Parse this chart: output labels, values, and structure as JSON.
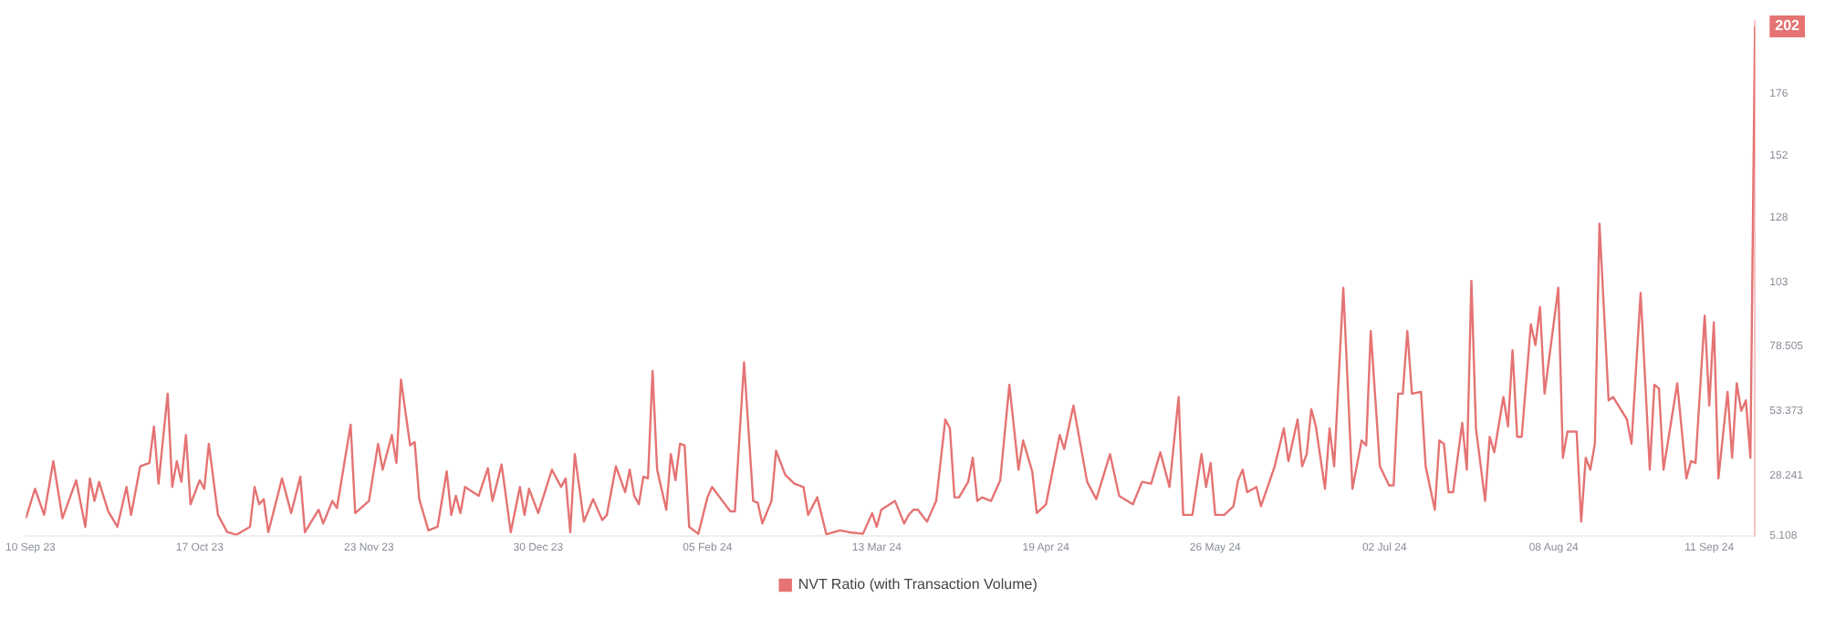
{
  "chart_data": {
    "type": "line",
    "legend": "bottom",
    "marker": "none",
    "line_style": "solid",
    "grid": false,
    "xlim": [
      "2023-09-09",
      "2024-09-21"
    ],
    "xticks": [
      {
        "value": "2023-09-10",
        "label": "10 Sep 23"
      },
      {
        "value": "2023-10-17",
        "label": "17 Oct 23"
      },
      {
        "value": "2023-11-23",
        "label": "23 Nov 23"
      },
      {
        "value": "2023-12-30",
        "label": "30 Dec 23"
      },
      {
        "value": "2024-02-05",
        "label": "05 Feb 24"
      },
      {
        "value": "2024-03-13",
        "label": "13 Mar 24"
      },
      {
        "value": "2024-04-19",
        "label": "19 Apr 24"
      },
      {
        "value": "2024-05-26",
        "label": "26 May 24"
      },
      {
        "value": "2024-07-02",
        "label": "02 Jul 24"
      },
      {
        "value": "2024-08-08",
        "label": "08 Aug 24"
      },
      {
        "value": "2024-09-11",
        "label": "11 Sep 24"
      }
    ],
    "ylim": [
      5.108,
      204
    ],
    "yticks": [
      5.108,
      28.241,
      53.373,
      78.505,
      103,
      128,
      152,
      176
    ],
    "annotations": [
      {
        "text": "202",
        "x": "2024-09-21",
        "y": 202
      }
    ],
    "series": [
      {
        "name": "NVT Ratio (with Transaction Volume)",
        "color": "#e57373",
        "x": [
          "2023-09-09",
          "2023-09-11",
          "2023-09-13",
          "2023-09-15",
          "2023-09-17",
          "2023-09-20",
          "2023-09-22",
          "2023-09-23",
          "2023-09-24",
          "2023-09-25",
          "2023-09-27",
          "2023-09-29",
          "2023-10-01",
          "2023-10-02",
          "2023-10-04",
          "2023-10-06",
          "2023-10-07",
          "2023-10-08",
          "2023-10-10",
          "2023-10-11",
          "2023-10-12",
          "2023-10-13",
          "2023-10-14",
          "2023-10-15",
          "2023-10-17",
          "2023-10-18",
          "2023-10-19",
          "2023-10-21",
          "2023-10-23",
          "2023-10-25",
          "2023-10-28",
          "2023-10-29",
          "2023-10-30",
          "2023-10-31",
          "2023-11-01",
          "2023-11-04",
          "2023-11-06",
          "2023-11-08",
          "2023-11-09",
          "2023-11-12",
          "2023-11-13",
          "2023-11-15",
          "2023-11-16",
          "2023-11-19",
          "2023-11-20",
          "2023-11-23",
          "2023-11-25",
          "2023-11-26",
          "2023-11-28",
          "2023-11-29",
          "2023-11-30",
          "2023-12-02",
          "2023-12-03",
          "2023-12-04",
          "2023-12-06",
          "2023-12-08",
          "2023-12-10",
          "2023-12-11",
          "2023-12-12",
          "2023-12-13",
          "2023-12-14",
          "2023-12-17",
          "2023-12-19",
          "2023-12-20",
          "2023-12-22",
          "2023-12-24",
          "2023-12-26",
          "2023-12-27",
          "2023-12-28",
          "2023-12-30",
          "2024-01-02",
          "2024-01-04",
          "2024-01-05",
          "2024-01-06",
          "2024-01-07",
          "2024-01-09",
          "2024-01-11",
          "2024-01-13",
          "2024-01-14",
          "2024-01-16",
          "2024-01-18",
          "2024-01-19",
          "2024-01-20",
          "2024-01-21",
          "2024-01-22",
          "2024-01-23",
          "2024-01-24",
          "2024-01-25",
          "2024-01-27",
          "2024-01-28",
          "2024-01-29",
          "2024-01-30",
          "2024-01-31",
          "2024-02-01",
          "2024-02-03",
          "2024-02-05",
          "2024-02-06",
          "2024-02-08",
          "2024-02-10",
          "2024-02-11",
          "2024-02-13",
          "2024-02-15",
          "2024-02-16",
          "2024-02-17",
          "2024-02-19",
          "2024-02-20",
          "2024-02-22",
          "2024-02-24",
          "2024-02-26",
          "2024-02-27",
          "2024-02-29",
          "2024-03-02",
          "2024-03-05",
          "2024-03-07",
          "2024-03-10",
          "2024-03-12",
          "2024-03-13",
          "2024-03-14",
          "2024-03-17",
          "2024-03-19",
          "2024-03-20",
          "2024-03-21",
          "2024-03-22",
          "2024-03-24",
          "2024-03-26",
          "2024-03-28",
          "2024-03-29",
          "2024-03-30",
          "2024-03-31",
          "2024-04-02",
          "2024-04-03",
          "2024-04-04",
          "2024-04-05",
          "2024-04-07",
          "2024-04-09",
          "2024-04-11",
          "2024-04-13",
          "2024-04-14",
          "2024-04-16",
          "2024-04-17",
          "2024-04-19",
          "2024-04-22",
          "2024-04-23",
          "2024-04-25",
          "2024-04-28",
          "2024-04-30",
          "2024-05-03",
          "2024-05-05",
          "2024-05-08",
          "2024-05-10",
          "2024-05-12",
          "2024-05-14",
          "2024-05-16",
          "2024-05-18",
          "2024-05-19",
          "2024-05-21",
          "2024-05-23",
          "2024-05-24",
          "2024-05-25",
          "2024-05-26",
          "2024-05-28",
          "2024-05-30",
          "2024-05-31",
          "2024-06-01",
          "2024-06-02",
          "2024-06-04",
          "2024-06-05",
          "2024-06-08",
          "2024-06-10",
          "2024-06-11",
          "2024-06-13",
          "2024-06-14",
          "2024-06-15",
          "2024-06-16",
          "2024-06-17",
          "2024-06-19",
          "2024-06-20",
          "2024-06-21",
          "2024-06-23",
          "2024-06-25",
          "2024-06-27",
          "2024-06-28",
          "2024-06-29",
          "2024-07-01",
          "2024-07-03",
          "2024-07-04",
          "2024-07-05",
          "2024-07-06",
          "2024-07-07",
          "2024-07-08",
          "2024-07-10",
          "2024-07-11",
          "2024-07-13",
          "2024-07-14",
          "2024-07-15",
          "2024-07-16",
          "2024-07-17",
          "2024-07-19",
          "2024-07-20",
          "2024-07-21",
          "2024-07-22",
          "2024-07-24",
          "2024-07-25",
          "2024-07-26",
          "2024-07-28",
          "2024-07-29",
          "2024-07-30",
          "2024-07-31",
          "2024-08-01",
          "2024-08-03",
          "2024-08-04",
          "2024-08-05",
          "2024-08-06",
          "2024-08-09",
          "2024-08-10",
          "2024-08-11",
          "2024-08-13",
          "2024-08-14",
          "2024-08-15",
          "2024-08-16",
          "2024-08-17",
          "2024-08-18",
          "2024-08-20",
          "2024-08-21",
          "2024-08-24",
          "2024-08-25",
          "2024-08-27",
          "2024-08-29",
          "2024-08-30",
          "2024-08-31",
          "2024-09-01",
          "2024-09-04",
          "2024-09-06",
          "2024-09-07",
          "2024-09-08",
          "2024-09-10",
          "2024-09-11",
          "2024-09-12",
          "2024-09-13",
          "2024-09-15",
          "2024-09-16",
          "2024-09-17",
          "2024-09-18",
          "2024-09-19",
          "2024-09-20",
          "2024-09-21"
        ],
        "values": [
          11.8,
          23.2,
          13.1,
          33.9,
          11.8,
          26.5,
          8.5,
          27.2,
          18.5,
          25.9,
          14.5,
          8.5,
          23.9,
          13.1,
          31.9,
          33.2,
          47.3,
          25.2,
          60,
          23.9,
          33.9,
          25.9,
          44,
          17.2,
          26.5,
          23.2,
          40.6,
          13.1,
          6.5,
          5.4,
          8.5,
          23.9,
          17.2,
          19.2,
          6.4,
          27.2,
          13.8,
          27.9,
          6.4,
          15.1,
          9.8,
          18.5,
          15.8,
          48,
          13.8,
          18.5,
          40.6,
          30.6,
          44,
          33.2,
          65.4,
          40,
          41.3,
          19.2,
          7.1,
          8.5,
          29.9,
          13.1,
          20.5,
          13.8,
          23.9,
          20.5,
          31.2,
          18.5,
          32.6,
          6.4,
          23.9,
          13.1,
          23.2,
          13.8,
          30.6,
          23.9,
          27.2,
          6.4,
          36.6,
          10.5,
          19.2,
          11.1,
          13.1,
          31.9,
          21.9,
          30.6,
          20.5,
          17.2,
          27.9,
          27.2,
          68.8,
          30.6,
          15.1,
          36.6,
          26.5,
          40.6,
          40,
          8.5,
          5.8,
          19.9,
          23.9,
          19.2,
          14.5,
          14.5,
          72.1,
          18.5,
          17.8,
          9.8,
          18.5,
          37.9,
          28.6,
          25.2,
          23.9,
          13.1,
          19.9,
          5.6,
          7.1,
          6.4,
          5.8,
          13.8,
          8.5,
          15.1,
          18.5,
          9.8,
          13.1,
          15.1,
          15.1,
          10.5,
          18.5,
          50,
          46.6,
          19.9,
          19.9,
          25.9,
          35.2,
          18.5,
          19.9,
          18.5,
          26.5,
          63.4,
          30.6,
          41.9,
          29.9,
          13.8,
          17.2,
          44,
          38.6,
          55.4,
          25.9,
          19.2,
          36.6,
          20.5,
          17.2,
          25.9,
          25.2,
          37.3,
          23.9,
          58.7,
          13.1,
          13.1,
          36.6,
          23.9,
          33.2,
          13.1,
          13.1,
          16.5,
          26.5,
          30.6,
          21.9,
          23.9,
          16.5,
          31.9,
          46.6,
          33.9,
          50,
          31.9,
          36.6,
          54,
          47.3,
          23.2,
          46.6,
          31.9,
          100.9,
          23.2,
          41.9,
          40,
          84.2,
          31.9,
          24.5,
          24.5,
          60,
          60,
          84.2,
          60,
          60.7,
          31.9,
          15.1,
          41.9,
          40.6,
          21.9,
          21.9,
          48.7,
          30.6,
          103.6,
          46.6,
          18.5,
          43.3,
          37.3,
          58.7,
          47.3,
          76.8,
          43.3,
          43.3,
          86.8,
          78.8,
          93.5,
          60,
          100.9,
          35.2,
          45.3,
          45.3,
          10.5,
          35.2,
          30.6,
          40.6,
          125.7,
          57.4,
          58.7,
          50,
          40.6,
          98.9,
          30.6,
          63.4,
          62,
          30.6,
          64,
          27.2,
          33.9,
          33.2,
          90.2,
          55.4,
          87.5,
          27.2,
          60.7,
          35.2,
          64,
          53.3,
          57.4,
          35.2,
          202
        ]
      }
    ]
  }
}
